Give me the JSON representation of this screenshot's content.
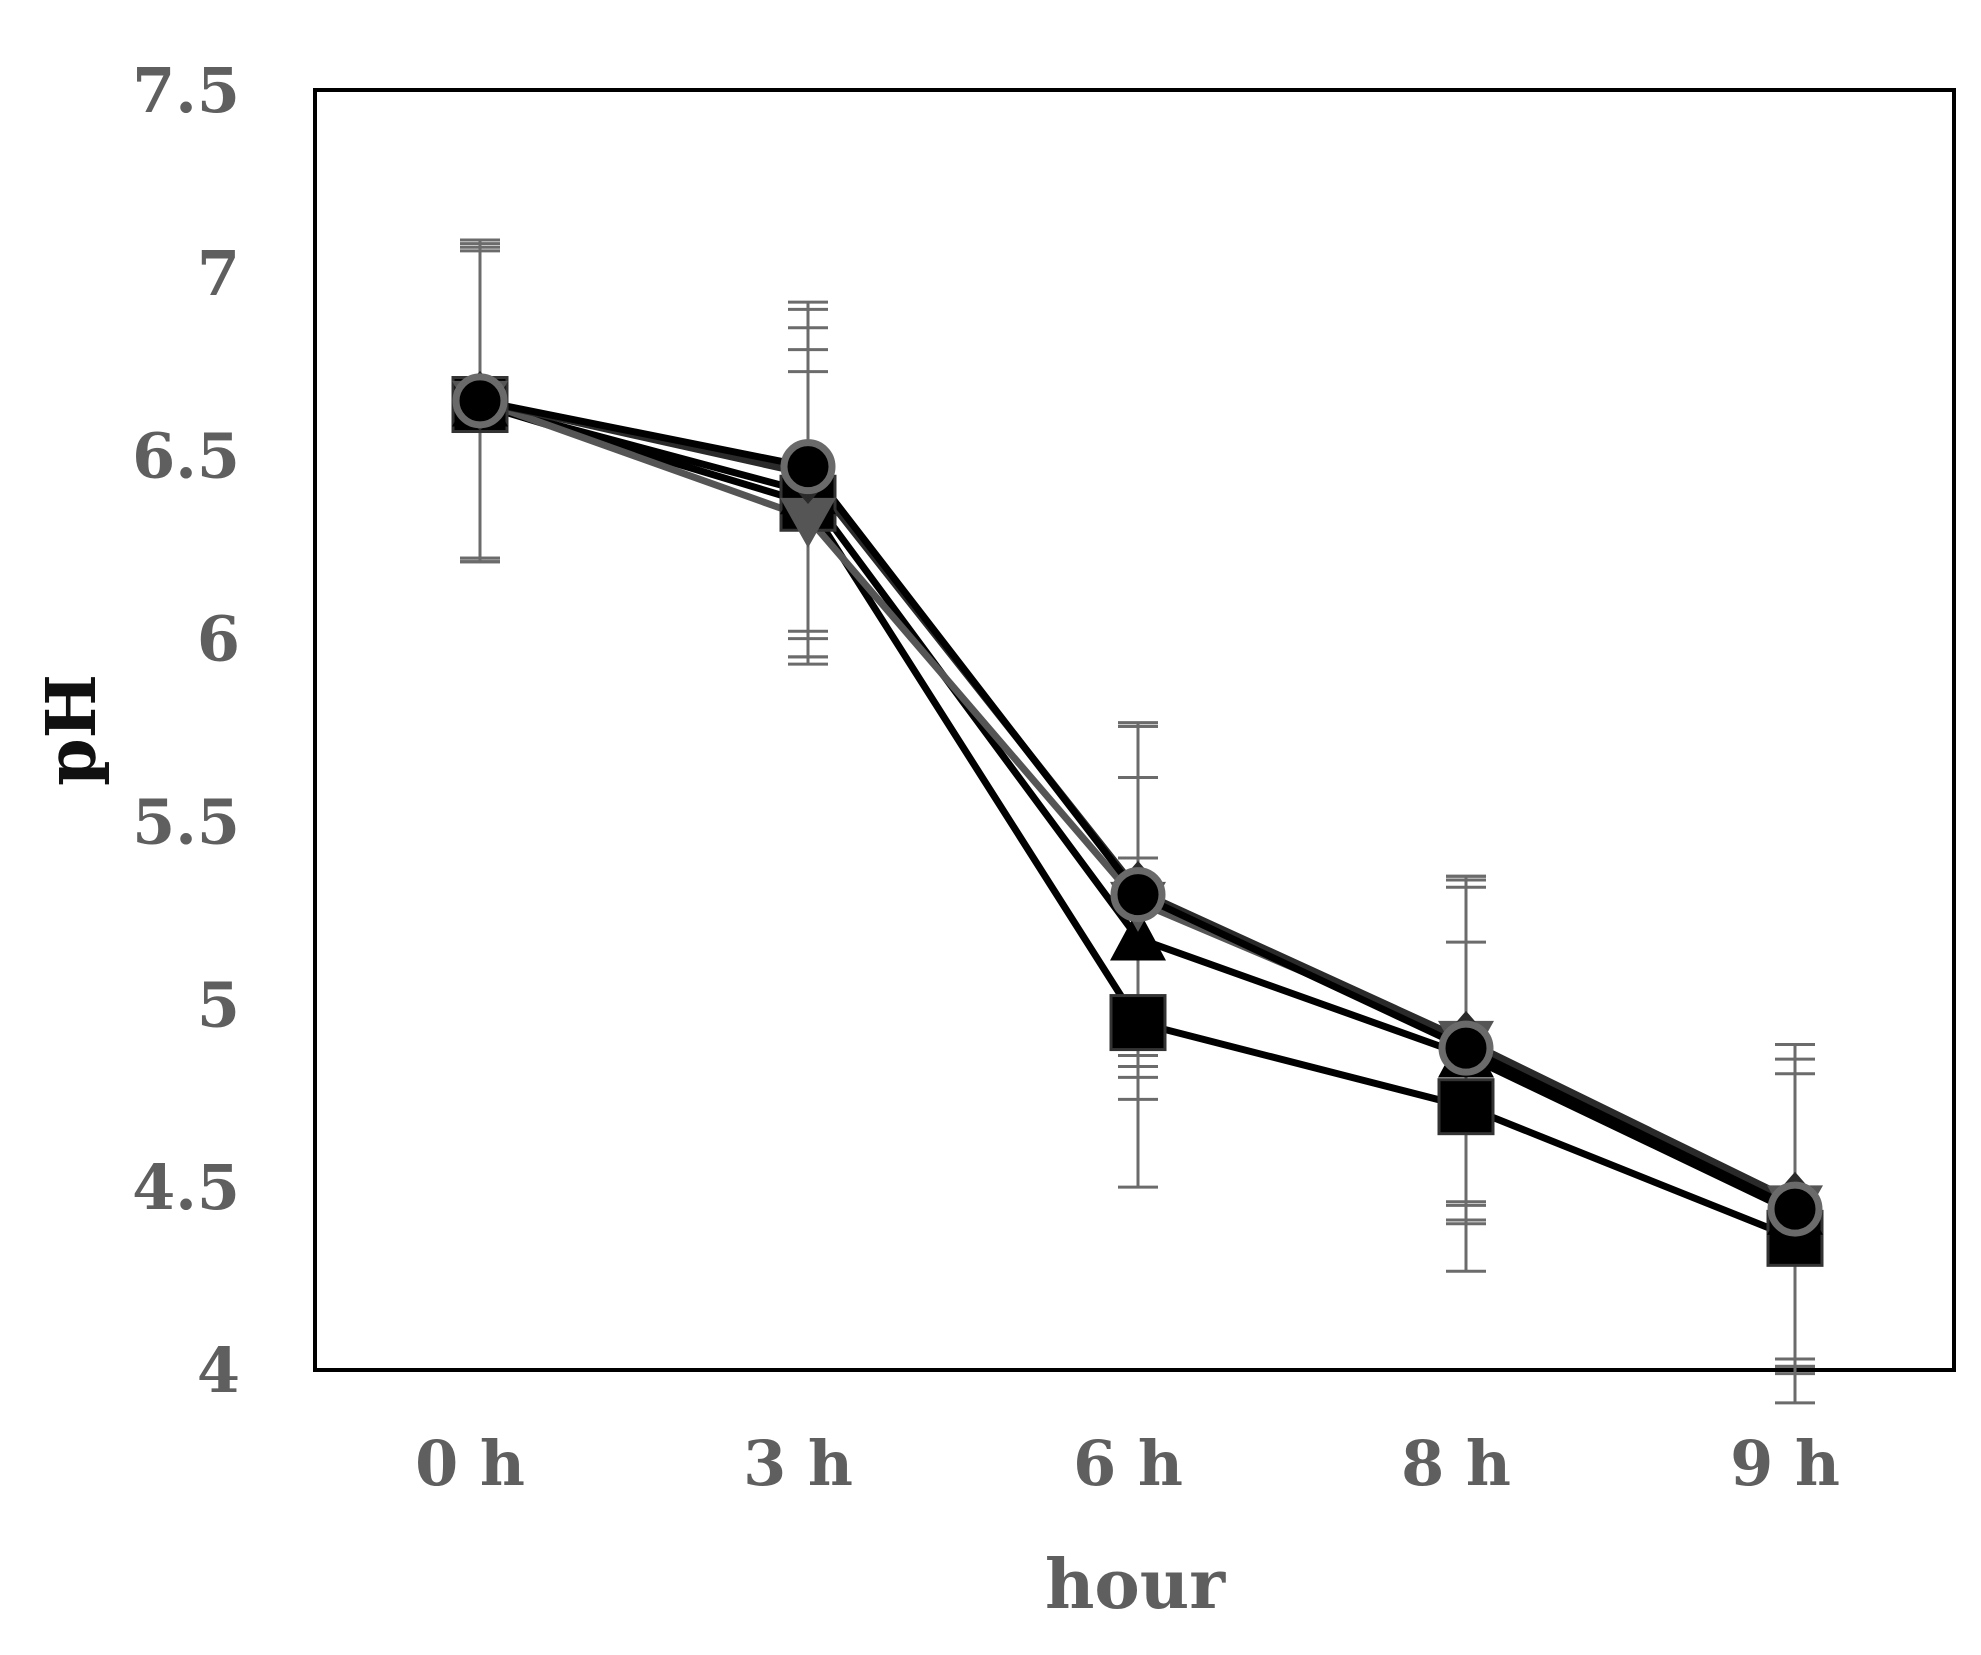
{
  "chart_data": {
    "type": "line",
    "title": "",
    "xlabel": "hour",
    "ylabel": "pH",
    "categories": [
      "0 h",
      "3 h",
      "6 h",
      "8 h",
      "9 h"
    ],
    "y_ticks": [
      "4",
      "4.5",
      "5",
      "5.5",
      "6",
      "6.5",
      "7",
      "7.5"
    ],
    "ylim": [
      4,
      7.5
    ],
    "grid": false,
    "legend": "none",
    "series": [
      {
        "name": "square",
        "marker": "square",
        "color": "#000000",
        "values": [
          6.64,
          6.37,
          4.95,
          4.72,
          4.36
        ],
        "err": [
          0.42,
          0.42,
          0.45,
          0.45,
          0.45
        ]
      },
      {
        "name": "triangle",
        "marker": "triangle",
        "color": "#000000",
        "values": [
          6.64,
          6.4,
          5.18,
          4.86,
          4.43
        ],
        "err": [
          0.43,
          0.45,
          0.44,
          0.46,
          0.42
        ]
      },
      {
        "name": "inverted-triangle",
        "marker": "triangle-down",
        "color": "#555555",
        "values": [
          6.65,
          6.33,
          5.28,
          4.9,
          4.45
        ],
        "err": [
          0.43,
          0.4,
          0.48,
          0.45,
          0.44
        ]
      },
      {
        "name": "diamond",
        "marker": "diamond",
        "color": "#2a2a2a",
        "values": [
          6.65,
          6.45,
          5.31,
          4.9,
          4.46
        ],
        "err": [
          0.44,
          0.45,
          0.45,
          0.44,
          0.43
        ]
      },
      {
        "name": "circle",
        "marker": "circle",
        "color": "#000000",
        "values": [
          6.65,
          6.47,
          5.3,
          4.88,
          4.44
        ],
        "err": [
          0.44,
          0.45,
          0.47,
          0.47,
          0.45
        ]
      }
    ]
  }
}
